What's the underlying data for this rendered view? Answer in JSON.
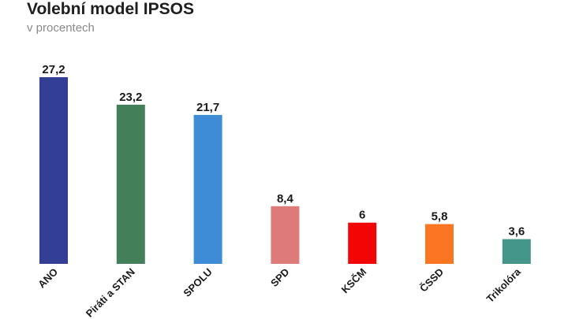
{
  "chart_data": {
    "type": "bar",
    "title": "Volební model IPSOS",
    "subtitle": "v procentech",
    "xlabel": "",
    "ylabel": "",
    "ylim": [
      0,
      27.2
    ],
    "grid": false,
    "categories": [
      "ANO",
      "Piráti a STAN",
      "SPOLU",
      "SPD",
      "KSČM",
      "ČSSD",
      "Trikolóra"
    ],
    "values": [
      27.2,
      23.2,
      21.7,
      8.4,
      6,
      5.8,
      3.6
    ],
    "value_labels": [
      "27,2",
      "23,2",
      "21,7",
      "8,4",
      "6",
      "5,8",
      "3,6"
    ],
    "colors": [
      "#333f94",
      "#43805a",
      "#3e8bd6",
      "#dc7b78",
      "#f20505",
      "#fb7622",
      "#44968a"
    ]
  }
}
